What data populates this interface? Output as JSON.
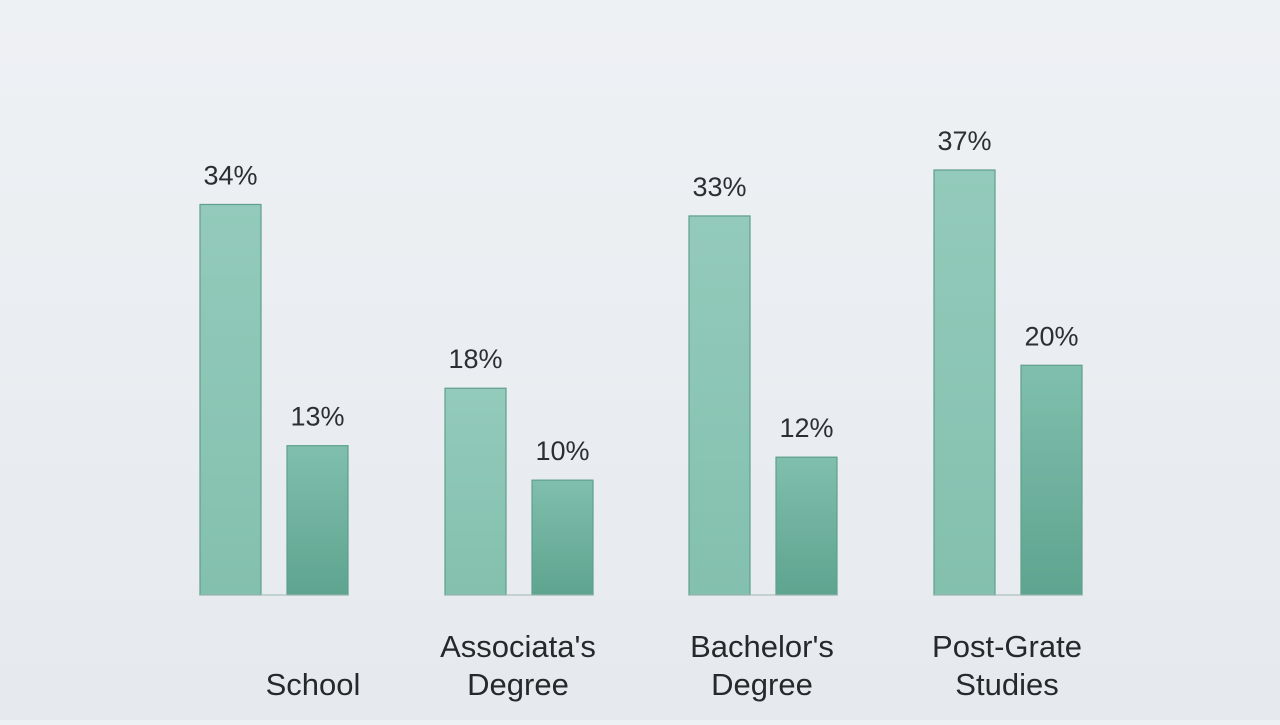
{
  "chart_data": {
    "type": "bar",
    "title": "",
    "xlabel": "",
    "ylabel": "",
    "ylim": [
      0,
      37
    ],
    "categories": [
      "School",
      "Associata's Degree",
      "Bachelor's Degree",
      "Post-Grate Studies"
    ],
    "category_lines": [
      [
        "School"
      ],
      [
        "Associata's",
        "Degree"
      ],
      [
        "Bachelor's",
        "Degree"
      ],
      [
        "Post-Grate",
        "Studies"
      ]
    ],
    "series": [
      {
        "values": [
          34,
          18,
          33,
          37
        ],
        "labels": [
          "34%",
          "18%",
          "33%",
          "37%"
        ],
        "color": "#8ec7b7"
      },
      {
        "values": [
          13,
          10,
          12,
          20
        ],
        "labels": [
          "13%",
          "10%",
          "12%",
          "20%"
        ],
        "color": "#6fb3a0"
      }
    ],
    "grid": false,
    "legend": "none"
  }
}
